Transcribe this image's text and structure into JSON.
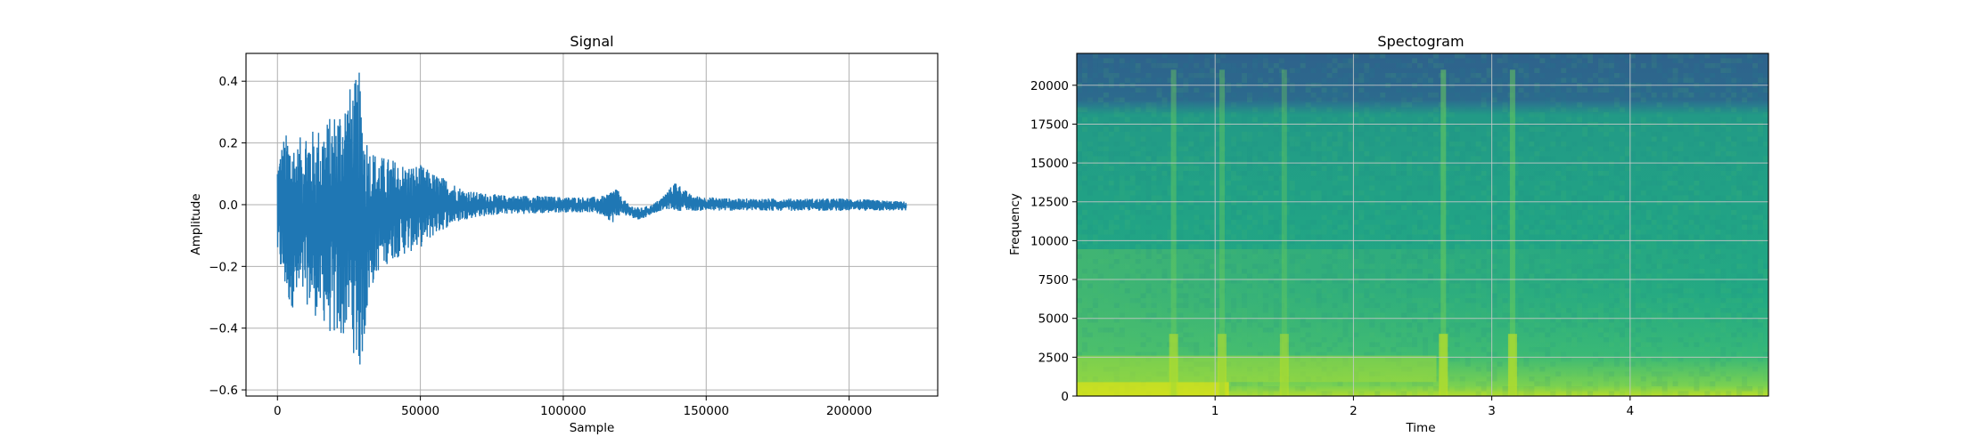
{
  "chart_data": [
    {
      "type": "line",
      "title": "Signal",
      "xlabel": "Sample",
      "ylabel": "Amplitude",
      "xlim": [
        -11000,
        231000
      ],
      "ylim": [
        -0.62,
        0.49
      ],
      "xticks": [
        0,
        50000,
        100000,
        150000,
        200000
      ],
      "yticks": [
        -0.6,
        -0.4,
        -0.2,
        0.0,
        0.2,
        0.4
      ],
      "xtick_labels": [
        "0",
        "50000",
        "100000",
        "150000",
        "200000"
      ],
      "ytick_labels": [
        "−0.6",
        "−0.4",
        "−0.2",
        "0.0",
        "0.2",
        "0.4"
      ],
      "grid": true,
      "color": "#1f77b4",
      "series": [
        {
          "x": [
            0,
            2000,
            4000,
            7000,
            10000,
            13000,
            16000,
            19000,
            22000,
            25000,
            27000,
            28500,
            30000,
            32000,
            35000,
            40000,
            45000,
            50000,
            55000,
            60000,
            65000,
            70000,
            80000,
            90000,
            100000,
            110000,
            115000,
            117000,
            118500,
            120000,
            123000,
            127000,
            131000,
            134000,
            137000,
            139500,
            141000,
            145000,
            150000,
            160000,
            180000,
            200000,
            220000
          ],
          "upper": [
            0.15,
            0.22,
            0.24,
            0.2,
            0.26,
            0.24,
            0.27,
            0.29,
            0.34,
            0.38,
            0.4,
            0.44,
            0.3,
            0.2,
            0.16,
            0.15,
            0.13,
            0.13,
            0.1,
            0.08,
            0.05,
            0.04,
            0.03,
            0.03,
            0.025,
            0.025,
            0.03,
            0.05,
            0.06,
            0.03,
            0.0,
            -0.01,
            0.0,
            0.02,
            0.05,
            0.08,
            0.06,
            0.03,
            0.025,
            0.02,
            0.02,
            0.02,
            0.01
          ],
          "lower": [
            -0.18,
            -0.27,
            -0.33,
            -0.34,
            -0.32,
            -0.36,
            -0.38,
            -0.43,
            -0.45,
            -0.4,
            -0.5,
            -0.56,
            -0.48,
            -0.3,
            -0.22,
            -0.18,
            -0.16,
            -0.14,
            -0.1,
            -0.07,
            -0.05,
            -0.04,
            -0.03,
            -0.03,
            -0.025,
            -0.025,
            -0.04,
            -0.06,
            -0.05,
            -0.03,
            -0.04,
            -0.05,
            -0.03,
            -0.02,
            -0.015,
            -0.02,
            -0.02,
            -0.02,
            -0.02,
            -0.02,
            -0.02,
            -0.02,
            -0.02
          ]
        }
      ]
    },
    {
      "type": "heatmap",
      "title": "Spectogram",
      "xlabel": "Time",
      "ylabel": "Frequency",
      "xlim": [
        0,
        5
      ],
      "ylim": [
        0,
        22050
      ],
      "xticks": [
        1,
        2,
        3,
        4
      ],
      "yticks": [
        0,
        2500,
        5000,
        7500,
        10000,
        12500,
        15000,
        17500,
        20000
      ],
      "xtick_labels": [
        "1",
        "2",
        "3",
        "4"
      ],
      "ytick_labels": [
        "0",
        "2500",
        "5000",
        "7500",
        "10000",
        "12500",
        "15000",
        "17500",
        "20000"
      ],
      "grid": true,
      "colormap": "viridis",
      "time_bins": [
        0.1,
        0.3,
        0.5,
        0.7,
        0.9,
        1.1,
        1.3,
        1.5,
        1.7,
        1.9,
        2.1,
        2.3,
        2.5,
        2.7,
        2.9,
        3.1,
        3.3,
        3.5,
        3.7,
        3.9,
        4.1,
        4.3,
        4.5,
        4.7,
        4.9
      ],
      "freq_bins": [
        500,
        1500,
        2500,
        3500,
        4500,
        5500,
        6500,
        7500,
        8500,
        9500,
        10500,
        11500,
        12500,
        13500,
        14500,
        15500,
        16500,
        17500,
        18500,
        19500,
        20500,
        21500
      ],
      "events": [
        {
          "time": 0.7,
          "level": 0.55
        },
        {
          "time": 1.05,
          "level": 0.45
        },
        {
          "time": 1.5,
          "level": 0.35
        },
        {
          "time": 2.65,
          "level": 0.8
        },
        {
          "time": 3.15,
          "level": 0.75
        }
      ]
    }
  ]
}
